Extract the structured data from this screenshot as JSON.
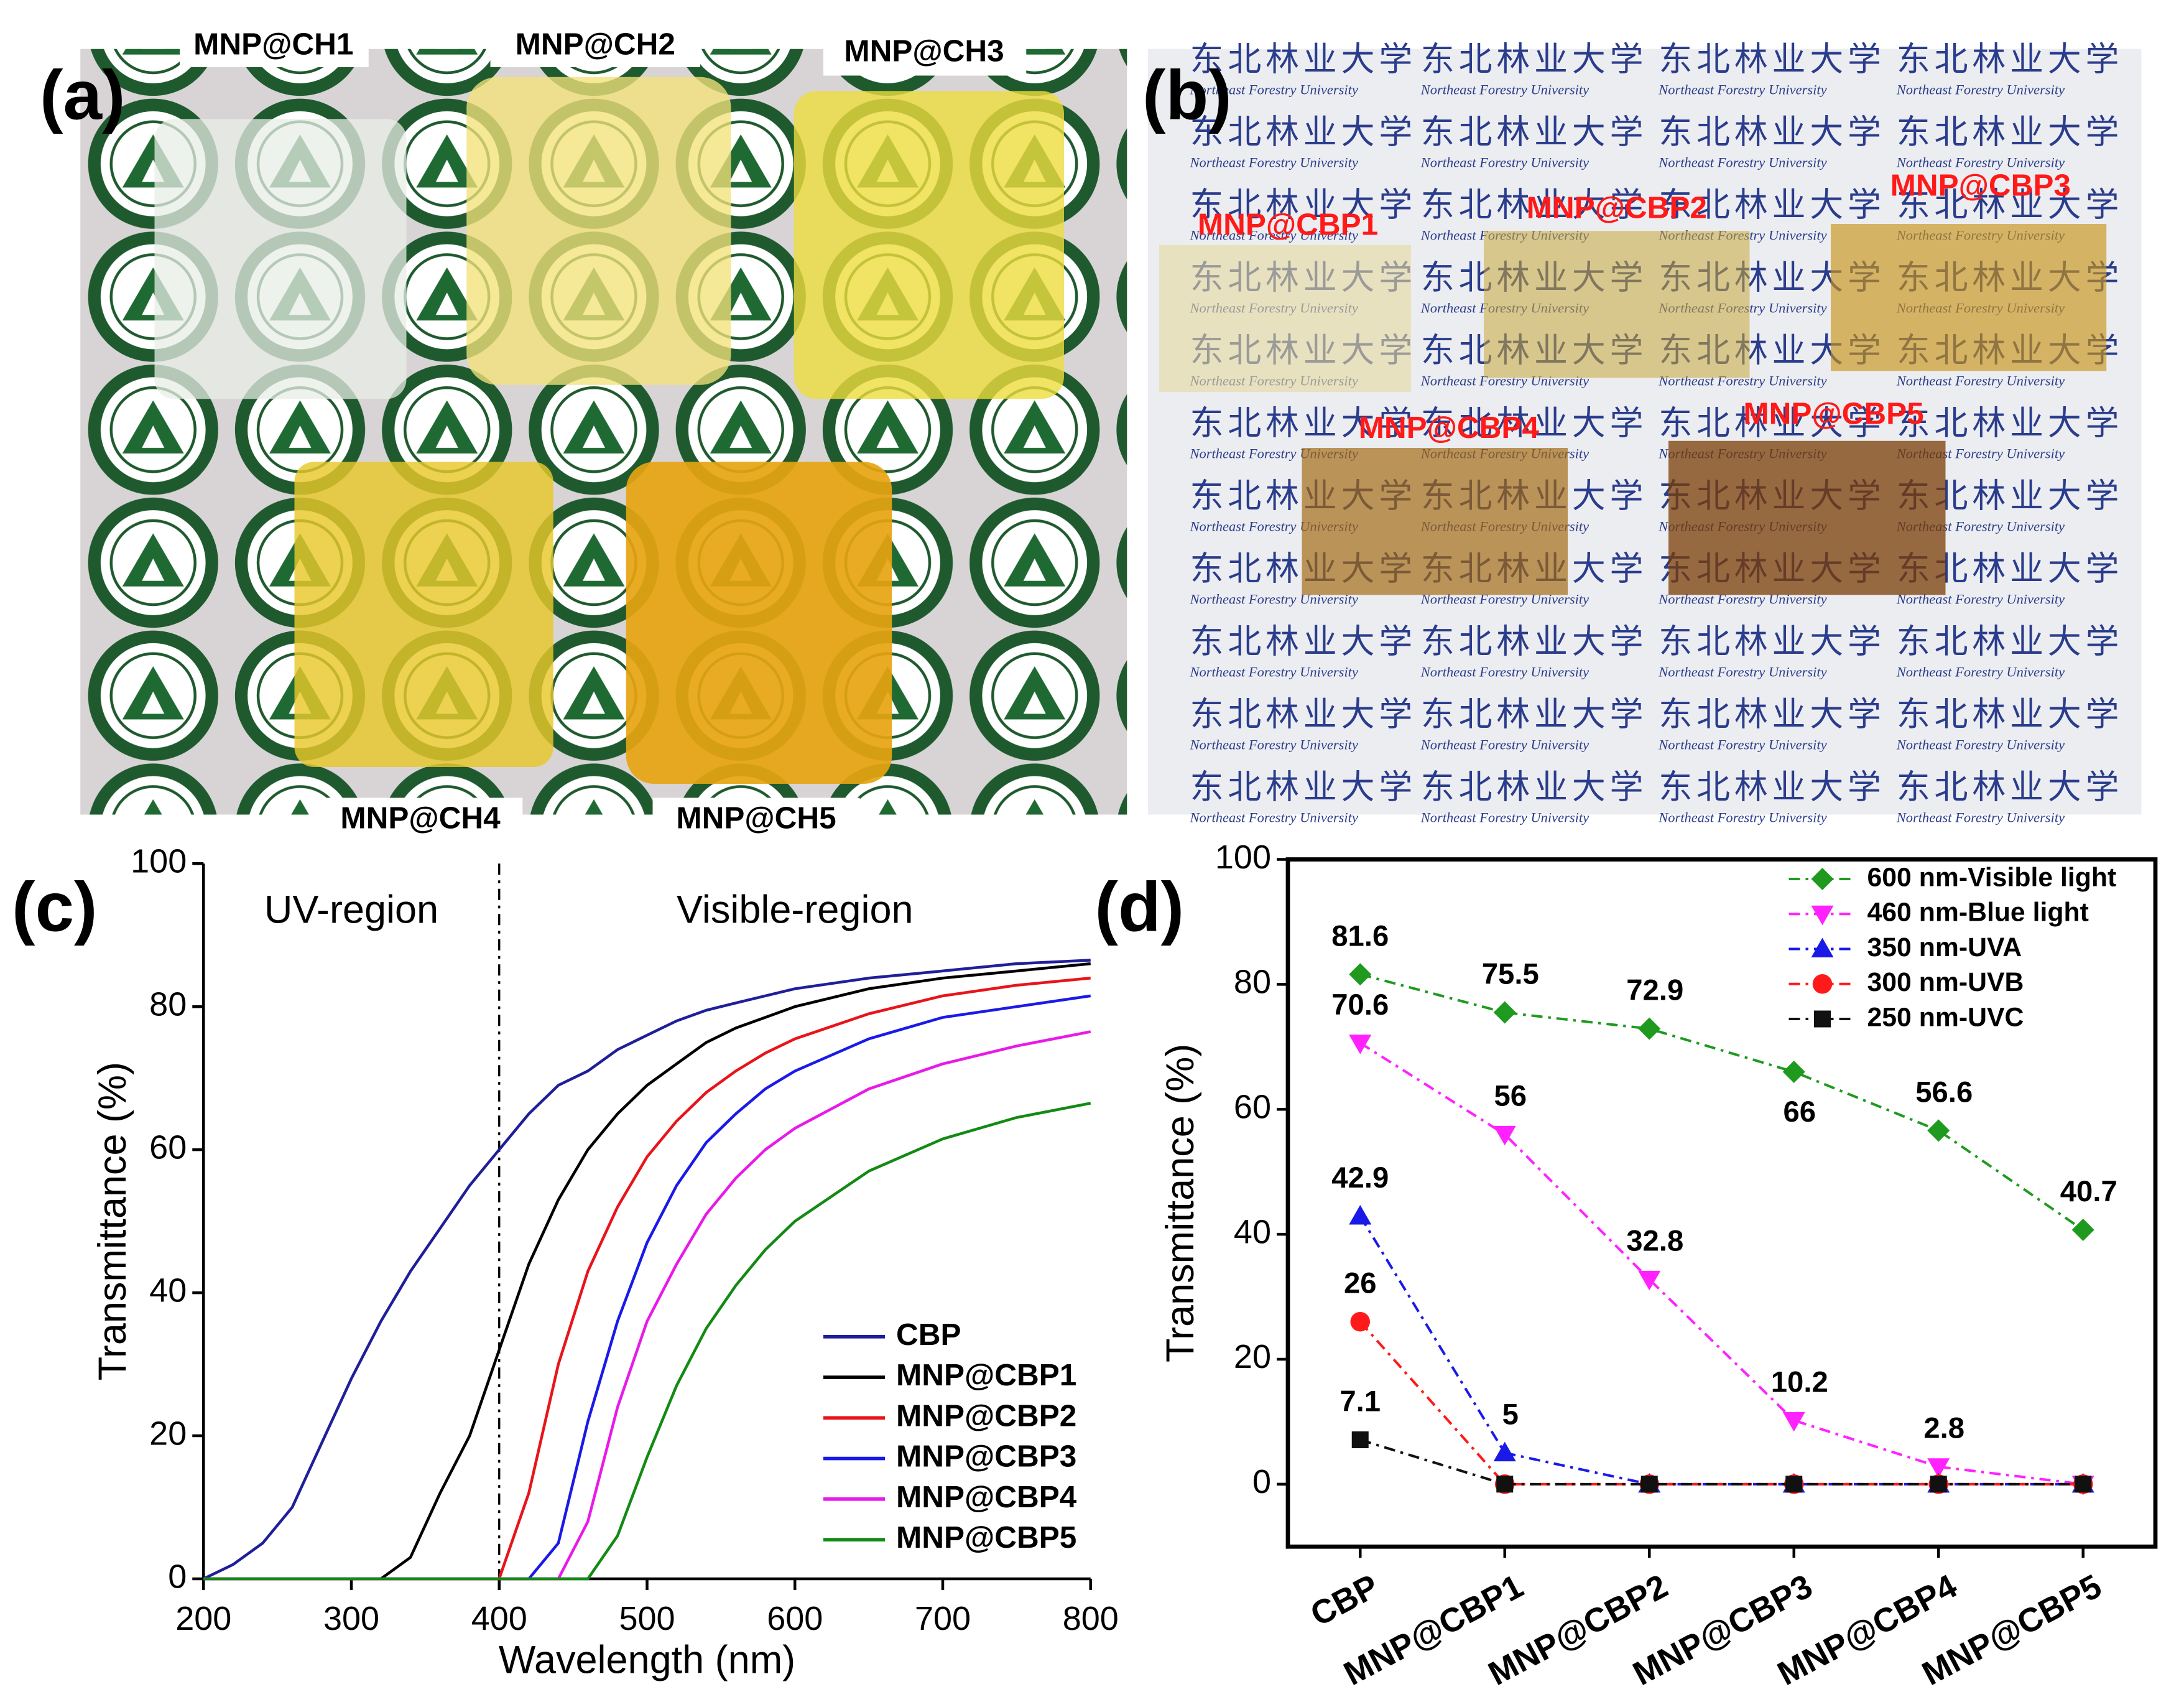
{
  "panel_labels": [
    "(a)",
    "(b)",
    "(c)",
    "(d)"
  ],
  "photo_a": {
    "labels": [
      "MNP@CH1",
      "MNP@CH2",
      "MNP@CH3",
      "MNP@CH4",
      "MNP@CH5"
    ]
  },
  "photo_b": {
    "labels": [
      "MNP@CBP1",
      "MNP@CBP2",
      "MNP@CBP3",
      "MNP@CBP4",
      "MNP@CBP5"
    ],
    "background_text": [
      "东北林业大学",
      "Northeast Forestry University"
    ]
  },
  "chart_data": [
    {
      "type": "line",
      "xlabel": "Wavelength (nm)",
      "ylabel": "Transmittance (%)",
      "annotations": [
        "UV-region",
        "Visible-region"
      ],
      "vline": 400,
      "x": [
        200,
        220,
        240,
        260,
        280,
        300,
        320,
        340,
        360,
        380,
        400,
        420,
        440,
        460,
        480,
        500,
        520,
        540,
        560,
        580,
        600,
        650,
        700,
        750,
        800
      ],
      "xlim": [
        200,
        800
      ],
      "xticks": [
        200,
        300,
        400,
        500,
        600,
        700,
        800
      ],
      "ylim": [
        0,
        100
      ],
      "yticks": [
        0,
        20,
        40,
        60,
        80,
        100
      ],
      "legend": "lower right",
      "series": [
        {
          "name": "CBP",
          "color": "#1f1f9a",
          "values": [
            0,
            2,
            5,
            10,
            19,
            28,
            36,
            43,
            49,
            55,
            60,
            65,
            69,
            71,
            74,
            76,
            78,
            79.5,
            80.5,
            81.5,
            82.5,
            84,
            85,
            86,
            86.5
          ]
        },
        {
          "name": "MNP@CBP1",
          "color": "#000000",
          "values": [
            0,
            0,
            0,
            0,
            0,
            0,
            0,
            3,
            12,
            20,
            32,
            44,
            53,
            60,
            65,
            69,
            72,
            75,
            77,
            78.5,
            80,
            82.5,
            84,
            85,
            86
          ]
        },
        {
          "name": "MNP@CBP2",
          "color": "#e8141a",
          "values": [
            0,
            0,
            0,
            0,
            0,
            0,
            0,
            0,
            0,
            0,
            0,
            12,
            30,
            43,
            52,
            59,
            64,
            68,
            71,
            73.5,
            75.5,
            79,
            81.5,
            83,
            84
          ]
        },
        {
          "name": "MNP@CBP3",
          "color": "#1a1ae8",
          "values": [
            0,
            0,
            0,
            0,
            0,
            0,
            0,
            0,
            0,
            0,
            0,
            0,
            5,
            22,
            36,
            47,
            55,
            61,
            65,
            68.5,
            71,
            75.5,
            78.5,
            80,
            81.5
          ]
        },
        {
          "name": "MNP@CBP4",
          "color": "#e81ae8",
          "values": [
            0,
            0,
            0,
            0,
            0,
            0,
            0,
            0,
            0,
            0,
            0,
            0,
            0,
            8,
            24,
            36,
            44,
            51,
            56,
            60,
            63,
            68.5,
            72,
            74.5,
            76.5
          ]
        },
        {
          "name": "MNP@CBP5",
          "color": "#138a13",
          "values": [
            0,
            0,
            0,
            0,
            0,
            0,
            0,
            0,
            0,
            0,
            0,
            0,
            0,
            0,
            6,
            17,
            27,
            35,
            41,
            46,
            50,
            57,
            61.5,
            64.5,
            66.5
          ]
        }
      ]
    },
    {
      "type": "line",
      "ylabel": "Transmittance (%)",
      "line_style": "dashdot",
      "frame": true,
      "legend": "upper right",
      "categories": [
        "CBP",
        "MNP@CBP1",
        "MNP@CBP2",
        "MNP@CBP3",
        "MNP@CBP4",
        "MNP@CBP5"
      ],
      "ylim": [
        -10,
        100
      ],
      "yticks": [
        0,
        20,
        40,
        60,
        80,
        100
      ],
      "series": [
        {
          "name": "600 nm-Visible light",
          "color": "#1f9a1f",
          "marker": "diamond",
          "values": [
            81.6,
            75.5,
            72.9,
            66,
            56.6,
            40.7
          ],
          "value_labels": [
            "81.6",
            "75.5",
            "72.9",
            "66",
            "56.6",
            "40.7"
          ]
        },
        {
          "name": "460 nm-Blue light",
          "color": "#ff22ff",
          "marker": "triangle-down",
          "values": [
            70.6,
            56,
            32.8,
            10.2,
            2.8,
            0
          ],
          "value_labels": [
            "70.6",
            "56",
            "32.8",
            "10.2",
            "2.8",
            null
          ]
        },
        {
          "name": "350 nm-UVA",
          "color": "#1a1ae8",
          "marker": "triangle-up",
          "values": [
            42.9,
            5,
            0,
            0,
            0,
            0
          ],
          "value_labels": [
            "42.9",
            "5",
            null,
            null,
            null,
            null
          ]
        },
        {
          "name": "300 nm-UVB",
          "color": "#ff1a1a",
          "marker": "circle",
          "values": [
            26,
            0,
            0,
            0,
            0,
            0
          ],
          "value_labels": [
            "26",
            null,
            null,
            null,
            null,
            null
          ]
        },
        {
          "name": "250 nm-UVC",
          "color": "#111111",
          "marker": "square",
          "values": [
            7.1,
            0,
            0,
            0,
            0,
            0
          ],
          "value_labels": [
            "7.1",
            null,
            null,
            null,
            null,
            null
          ]
        }
      ]
    }
  ]
}
